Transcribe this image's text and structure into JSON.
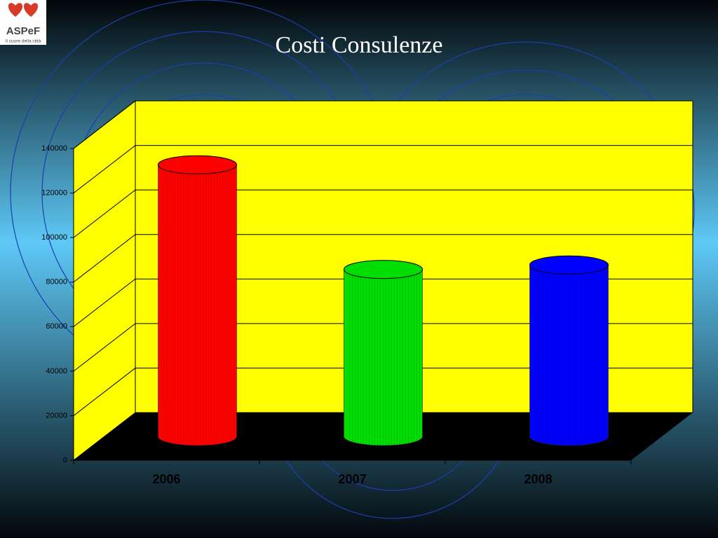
{
  "logo": {
    "name": "ASPeF",
    "tagline": "Il cuore della città"
  },
  "chart_data": {
    "type": "bar3d",
    "title": "Costi Consulenze",
    "categories": [
      "2006",
      "2007",
      "2008"
    ],
    "values": [
      122000,
      75000,
      77000
    ],
    "colors": [
      "#ff0000",
      "#00dd00",
      "#0000ff"
    ],
    "ylim": [
      0,
      140000
    ],
    "yticks": [
      0,
      20000,
      40000,
      60000,
      80000,
      100000,
      120000,
      140000
    ],
    "grid": true
  }
}
